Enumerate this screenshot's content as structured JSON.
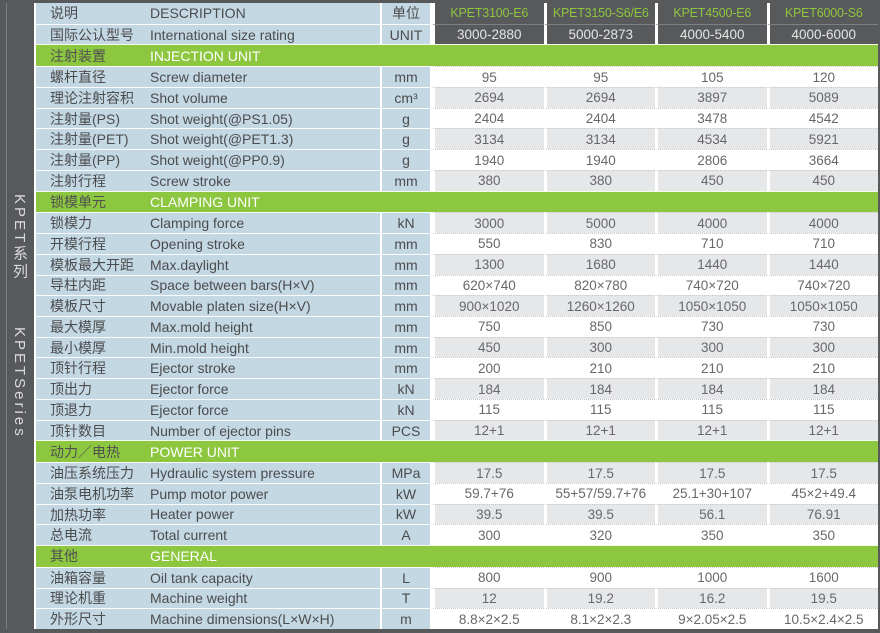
{
  "colors": {
    "dark": "#58595B",
    "green": "#8DC63F",
    "label_bg": "#C4D8E3",
    "shade": "#E6E7E8",
    "label_text": "#4B4C4E",
    "value_text": "#67686A"
  },
  "sidebar": {
    "series_cn": "KPET系列",
    "series_en": "KPETSeries"
  },
  "header": {
    "desc_cn": "说明",
    "desc_en": "DESCRIPTION",
    "unit_cn": "单位",
    "unit_en": "UNIT",
    "rating_cn": "国际公认型号",
    "rating_en": "International size rating",
    "models": [
      "KPET3100-E6",
      "KPET3150-S6/E6",
      "KPET4500-E6",
      "KPET6000-S6"
    ],
    "ratings": [
      "3000-2880",
      "5000-2873",
      "4000-5400",
      "4000-6000"
    ]
  },
  "sections": [
    {
      "cn": "注射装置",
      "en": "INJECTION UNIT",
      "rows": [
        {
          "cn": "螺杆直径",
          "en": "Screw diameter",
          "unit": "mm",
          "values": [
            "95",
            "95",
            "105",
            "120"
          ]
        },
        {
          "cn": "理论注射容积",
          "en": "Shot volume",
          "unit": "cm³",
          "values": [
            "2694",
            "2694",
            "3897",
            "5089"
          ]
        },
        {
          "cn": "注射量(PS)",
          "en": "Shot weight(@PS1.05)",
          "unit": "g",
          "values": [
            "2404",
            "2404",
            "3478",
            "4542"
          ]
        },
        {
          "cn": "注射量(PET)",
          "en": "Shot weight(@PET1.3)",
          "unit": "g",
          "values": [
            "3134",
            "3134",
            "4534",
            "5921"
          ]
        },
        {
          "cn": "注射量(PP)",
          "en": "Shot weight(@PP0.9)",
          "unit": "g",
          "values": [
            "1940",
            "1940",
            "2806",
            "3664"
          ]
        },
        {
          "cn": "注射行程",
          "en": "Screw stroke",
          "unit": "mm",
          "values": [
            "380",
            "380",
            "450",
            "450"
          ]
        }
      ]
    },
    {
      "cn": "锁模单元",
      "en": "CLAMPING UNIT",
      "rows": [
        {
          "cn": "锁模力",
          "en": "Clamping force",
          "unit": "kN",
          "values": [
            "3000",
            "5000",
            "4000",
            "4000"
          ]
        },
        {
          "cn": "开模行程",
          "en": "Opening stroke",
          "unit": "mm",
          "values": [
            "550",
            "830",
            "710",
            "710"
          ]
        },
        {
          "cn": "模板最大开距",
          "en": "Max.daylight",
          "unit": "mm",
          "values": [
            "1300",
            "1680",
            "1440",
            "1440"
          ]
        },
        {
          "cn": "导柱内距",
          "en": "Space between bars(H×V)",
          "unit": "mm",
          "values": [
            "620×740",
            "820×780",
            "740×720",
            "740×720"
          ]
        },
        {
          "cn": "模板尺寸",
          "en": "Movable platen size(H×V)",
          "unit": "mm",
          "values": [
            "900×1020",
            "1260×1260",
            "1050×1050",
            "1050×1050"
          ]
        },
        {
          "cn": "最大模厚",
          "en": "Max.mold height",
          "unit": "mm",
          "values": [
            "750",
            "850",
            "730",
            "730"
          ]
        },
        {
          "cn": "最小模厚",
          "en": "Min.mold height",
          "unit": "mm",
          "values": [
            "450",
            "300",
            "300",
            "300"
          ]
        },
        {
          "cn": "顶针行程",
          "en": "Ejector stroke",
          "unit": "mm",
          "values": [
            "200",
            "210",
            "210",
            "210"
          ]
        },
        {
          "cn": "顶出力",
          "en": "Ejector force",
          "unit": "kN",
          "values": [
            "184",
            "184",
            "184",
            "184"
          ]
        },
        {
          "cn": "顶退力",
          "en": "Ejector force",
          "unit": "kN",
          "values": [
            "115",
            "115",
            "115",
            "115"
          ]
        },
        {
          "cn": "顶针数目",
          "en": "Number of ejector pins",
          "unit": "PCS",
          "values": [
            "12+1",
            "12+1",
            "12+1",
            "12+1"
          ]
        }
      ]
    },
    {
      "cn": "动力／电热",
      "en": "POWER UNIT",
      "rows": [
        {
          "cn": "油压系统压力",
          "en": "Hydraulic system pressure",
          "unit": "MPa",
          "values": [
            "17.5",
            "17.5",
            "17.5",
            "17.5"
          ]
        },
        {
          "cn": "油泵电机功率",
          "en": "Pump motor power",
          "unit": "kW",
          "values": [
            "59.7+76",
            "55+57/59.7+76",
            "25.1+30+107",
            "45×2+49.4"
          ]
        },
        {
          "cn": "加热功率",
          "en": "Heater power",
          "unit": "kW",
          "values": [
            "39.5",
            "39.5",
            "56.1",
            "76.91"
          ]
        },
        {
          "cn": "总电流",
          "en": "Total current",
          "unit": "A",
          "values": [
            "300",
            "320",
            "350",
            "350"
          ]
        }
      ]
    },
    {
      "cn": "其他",
      "en": "GENERAL",
      "rows": [
        {
          "cn": "油箱容量",
          "en": "Oil tank capacity",
          "unit": "L",
          "values": [
            "800",
            "900",
            "1000",
            "1600"
          ]
        },
        {
          "cn": "理论机重",
          "en": "Machine weight",
          "unit": "T",
          "values": [
            "12",
            "19.2",
            "16.2",
            "19.5"
          ]
        },
        {
          "cn": "外形尺寸",
          "en": "Machine dimensions(L×W×H)",
          "unit": "m",
          "values": [
            "8.8×2×2.5",
            "8.1×2×2.3",
            "9×2.05×2.5",
            "10.5×2.4×2.5"
          ]
        }
      ]
    }
  ]
}
